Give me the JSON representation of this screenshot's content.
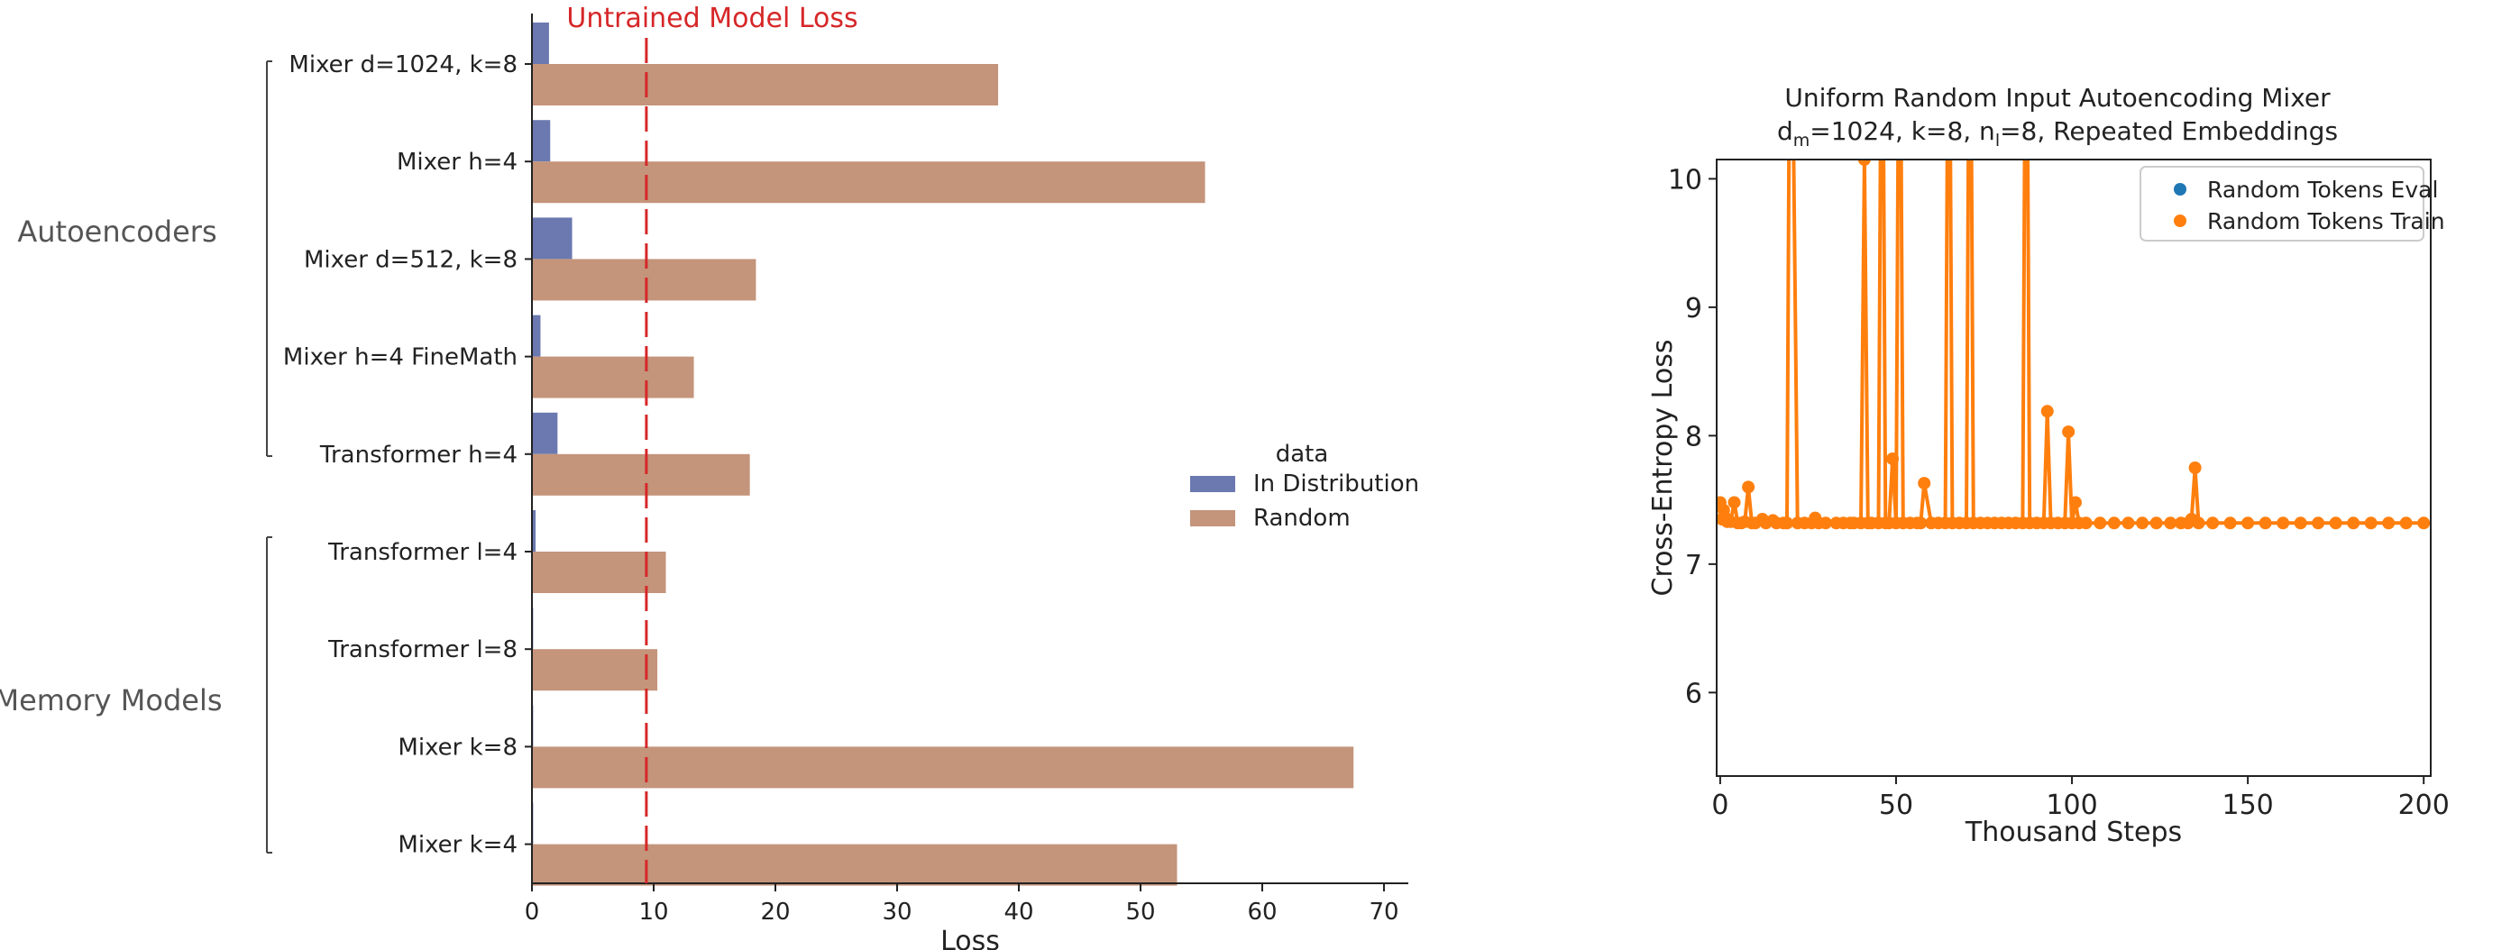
{
  "chart_data": [
    {
      "type": "bar",
      "orientation": "horizontal",
      "categories": [
        "Mixer d=1024, k=8",
        "Mixer h=4",
        "Mixer d=512, k=8",
        "Mixer h=4 FineMath",
        "Transformer h=4",
        "Transformer l=4",
        "Transformer l=8",
        "Mixer k=8",
        "Mixer k=4"
      ],
      "series": [
        {
          "name": "In Distribution",
          "color": "#6b79b0",
          "values": [
            1.4,
            1.5,
            3.3,
            0.7,
            2.1,
            0.3,
            0.1,
            0.1,
            0.1
          ]
        },
        {
          "name": "Random",
          "color": "#c4947b",
          "values": [
            38.3,
            55.3,
            18.4,
            13.3,
            17.9,
            11.0,
            10.3,
            67.5,
            53.0
          ]
        }
      ],
      "xlabel": "Loss",
      "xlim": [
        0,
        72
      ],
      "xticks": [
        0,
        10,
        20,
        30,
        40,
        50,
        60,
        70
      ],
      "legend": {
        "title": "data",
        "placement": "center-right"
      },
      "reference_line": {
        "label": "Untrained Model Loss",
        "value": 9.4,
        "color": "#d62728"
      },
      "groups": [
        {
          "label": "Autoencoders",
          "categories": [
            "Mixer d=1024, k=8",
            "Mixer h=4",
            "Mixer d=512, k=8",
            "Mixer h=4 FineMath",
            "Transformer h=4"
          ]
        },
        {
          "label": "Memory Models",
          "categories": [
            "Transformer l=4",
            "Transformer l=8",
            "Mixer k=8",
            "Mixer k=4"
          ]
        }
      ],
      "grid": false
    },
    {
      "type": "line",
      "title_line1": "Uniform Random Input Autoencoding Mixer",
      "title_line2": {
        "base1": "d",
        "sub1": "m",
        "mid": "=1024, k=8, n",
        "sub2": "l",
        "end": "=8, Repeated Embeddings"
      },
      "xlabel": "Thousand Steps",
      "ylabel": "Cross-Entropy Loss",
      "xlim": [
        -1,
        202
      ],
      "ylim": [
        5.35,
        10.15
      ],
      "xticks": [
        0,
        50,
        100,
        150,
        200
      ],
      "yticks": [
        6,
        7,
        8,
        9,
        10
      ],
      "legend_placement": "top-right",
      "grid": false,
      "series": [
        {
          "name": "Random Tokens Eval",
          "color": "#1f77b4",
          "x": [],
          "y": []
        },
        {
          "name": "Random Tokens Train",
          "color": "#ff7f0e",
          "x": [
            0,
            0.5,
            1,
            1.5,
            2,
            3,
            4,
            5,
            6,
            7,
            8,
            9,
            10,
            12,
            13,
            15,
            16,
            18,
            19,
            20,
            22,
            24,
            26,
            27,
            28,
            30,
            33,
            35,
            37,
            38,
            40,
            41,
            42,
            43,
            45,
            46,
            47,
            48,
            49,
            50,
            51,
            52,
            54,
            56,
            57,
            58,
            60,
            62,
            64,
            65,
            66,
            68,
            70,
            71,
            72,
            74,
            76,
            78,
            80,
            82,
            84,
            86,
            87,
            88,
            90,
            92,
            93,
            94,
            96,
            98,
            99,
            100,
            101,
            102,
            104,
            108,
            112,
            116,
            120,
            124,
            128,
            131,
            133,
            134,
            135,
            136,
            140,
            145,
            150,
            155,
            160,
            165,
            170,
            175,
            180,
            185,
            190,
            195,
            200
          ],
          "y": [
            7.48,
            7.35,
            7.42,
            7.36,
            7.33,
            7.33,
            7.48,
            7.32,
            7.32,
            7.33,
            7.6,
            7.32,
            7.32,
            7.35,
            7.32,
            7.34,
            7.32,
            7.32,
            7.32,
            12.5,
            7.32,
            7.32,
            7.32,
            7.36,
            7.32,
            7.32,
            7.32,
            7.32,
            7.32,
            7.32,
            7.32,
            10.15,
            7.32,
            7.32,
            7.32,
            12.5,
            7.32,
            7.32,
            7.82,
            7.32,
            12.5,
            7.32,
            7.32,
            7.32,
            7.32,
            7.63,
            7.32,
            7.32,
            7.32,
            12.5,
            7.32,
            7.32,
            7.32,
            12.5,
            7.32,
            7.32,
            7.32,
            7.32,
            7.32,
            7.32,
            7.32,
            7.32,
            12.5,
            7.32,
            7.32,
            7.32,
            8.19,
            7.32,
            7.32,
            7.32,
            8.03,
            7.32,
            7.48,
            7.32,
            7.32,
            7.32,
            7.32,
            7.32,
            7.32,
            7.32,
            7.32,
            7.32,
            7.32,
            7.35,
            7.75,
            7.32,
            7.32,
            7.32,
            7.32,
            7.32,
            7.32,
            7.32,
            7.32,
            7.32,
            7.32,
            7.32,
            7.32,
            7.32,
            7.32
          ]
        }
      ]
    }
  ]
}
